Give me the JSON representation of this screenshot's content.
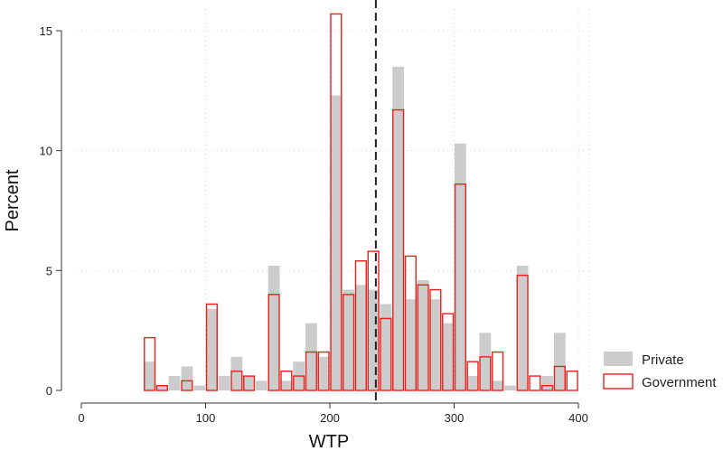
{
  "chart_data": {
    "type": "bar",
    "title": "",
    "xlabel": "WTP",
    "ylabel": "Percent",
    "xlim": [
      0,
      400
    ],
    "ylim": [
      0,
      15.5
    ],
    "x_ticks": [
      0,
      100,
      200,
      300,
      400
    ],
    "y_ticks": [
      0,
      5,
      10,
      15
    ],
    "bin_width": 10,
    "grid": true,
    "reference_line": {
      "x": 237,
      "style": "dashed"
    },
    "legend_position": "right",
    "series": [
      {
        "name": "Private",
        "color": "#cccccc",
        "style": "filled",
        "bins": [
          {
            "x": 50,
            "y": 1.2
          },
          {
            "x": 60,
            "y": 0.2
          },
          {
            "x": 70,
            "y": 0.6
          },
          {
            "x": 80,
            "y": 1.0
          },
          {
            "x": 90,
            "y": 0.2
          },
          {
            "x": 100,
            "y": 3.4
          },
          {
            "x": 110,
            "y": 0.6
          },
          {
            "x": 120,
            "y": 1.4
          },
          {
            "x": 130,
            "y": 0.6
          },
          {
            "x": 140,
            "y": 0.4
          },
          {
            "x": 150,
            "y": 5.2
          },
          {
            "x": 160,
            "y": 0.4
          },
          {
            "x": 170,
            "y": 1.2
          },
          {
            "x": 180,
            "y": 2.8
          },
          {
            "x": 190,
            "y": 1.4
          },
          {
            "x": 200,
            "y": 12.3
          },
          {
            "x": 210,
            "y": 4.2
          },
          {
            "x": 220,
            "y": 4.4
          },
          {
            "x": 230,
            "y": 4.2
          },
          {
            "x": 240,
            "y": 3.6
          },
          {
            "x": 250,
            "y": 13.5
          },
          {
            "x": 260,
            "y": 3.8
          },
          {
            "x": 270,
            "y": 4.6
          },
          {
            "x": 280,
            "y": 3.8
          },
          {
            "x": 290,
            "y": 2.8
          },
          {
            "x": 300,
            "y": 10.3
          },
          {
            "x": 310,
            "y": 0.6
          },
          {
            "x": 320,
            "y": 2.4
          },
          {
            "x": 330,
            "y": 0.4
          },
          {
            "x": 340,
            "y": 0.2
          },
          {
            "x": 350,
            "y": 5.2
          },
          {
            "x": 370,
            "y": 0.6
          },
          {
            "x": 380,
            "y": 2.4
          }
        ]
      },
      {
        "name": "Government",
        "color": "#e8211c",
        "style": "outline",
        "bins": [
          {
            "x": 50,
            "y": 2.2
          },
          {
            "x": 60,
            "y": 0.2
          },
          {
            "x": 80,
            "y": 0.4
          },
          {
            "x": 100,
            "y": 3.6
          },
          {
            "x": 120,
            "y": 0.8
          },
          {
            "x": 130,
            "y": 0.6
          },
          {
            "x": 150,
            "y": 4.0
          },
          {
            "x": 160,
            "y": 0.8
          },
          {
            "x": 170,
            "y": 0.6
          },
          {
            "x": 180,
            "y": 1.6
          },
          {
            "x": 190,
            "y": 1.6
          },
          {
            "x": 200,
            "y": 15.7
          },
          {
            "x": 210,
            "y": 4.0
          },
          {
            "x": 220,
            "y": 5.4
          },
          {
            "x": 230,
            "y": 5.8
          },
          {
            "x": 240,
            "y": 3.0
          },
          {
            "x": 250,
            "y": 11.7
          },
          {
            "x": 260,
            "y": 5.6
          },
          {
            "x": 270,
            "y": 4.4
          },
          {
            "x": 280,
            "y": 4.2
          },
          {
            "x": 290,
            "y": 3.2
          },
          {
            "x": 300,
            "y": 8.6
          },
          {
            "x": 310,
            "y": 1.2
          },
          {
            "x": 320,
            "y": 1.4
          },
          {
            "x": 330,
            "y": 1.6
          },
          {
            "x": 350,
            "y": 4.8
          },
          {
            "x": 360,
            "y": 0.6
          },
          {
            "x": 370,
            "y": 0.2
          },
          {
            "x": 380,
            "y": 1.0
          },
          {
            "x": 390,
            "y": 0.8
          }
        ]
      }
    ]
  }
}
